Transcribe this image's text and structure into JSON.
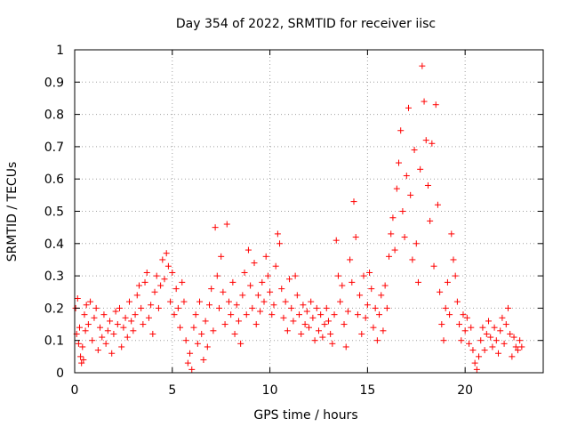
{
  "chart_data": {
    "type": "scatter",
    "title": "Day 354 of 2022, SRMTID for receiver iisc",
    "xlabel": "GPS time / hours",
    "ylabel": "SRMTID / TECUs",
    "xlim": [
      0,
      24
    ],
    "ylim": [
      0,
      1
    ],
    "xticks": [
      0,
      5,
      10,
      15,
      20
    ],
    "xtick_labels": [
      "0",
      "5",
      "10",
      "15",
      "20"
    ],
    "yticks": [
      0,
      0.1,
      0.2,
      0.3,
      0.4,
      0.5,
      0.6,
      0.7,
      0.8,
      0.9,
      1
    ],
    "ytick_labels": [
      "0",
      "0.1",
      "0.2",
      "0.3",
      "0.4",
      "0.5",
      "0.6",
      "0.7",
      "0.8",
      "0.9",
      "1"
    ],
    "grid": true,
    "marker": "plus",
    "color": "#ff0000",
    "series": [
      {
        "name": "SRMTID",
        "points": [
          [
            0.05,
            0.2
          ],
          [
            0.1,
            0.12
          ],
          [
            0.15,
            0.23
          ],
          [
            0.2,
            0.09
          ],
          [
            0.25,
            0.14
          ],
          [
            0.3,
            0.05
          ],
          [
            0.35,
            0.03
          ],
          [
            0.4,
            0.08
          ],
          [
            0.45,
            0.04
          ],
          [
            0.5,
            0.18
          ],
          [
            0.55,
            0.13
          ],
          [
            0.6,
            0.21
          ],
          [
            0.7,
            0.15
          ],
          [
            0.8,
            0.22
          ],
          [
            0.9,
            0.1
          ],
          [
            1.0,
            0.17
          ],
          [
            1.1,
            0.2
          ],
          [
            1.2,
            0.07
          ],
          [
            1.3,
            0.14
          ],
          [
            1.4,
            0.11
          ],
          [
            1.5,
            0.18
          ],
          [
            1.6,
            0.09
          ],
          [
            1.7,
            0.13
          ],
          [
            1.8,
            0.16
          ],
          [
            1.9,
            0.06
          ],
          [
            2.0,
            0.12
          ],
          [
            2.1,
            0.19
          ],
          [
            2.2,
            0.15
          ],
          [
            2.3,
            0.2
          ],
          [
            2.4,
            0.08
          ],
          [
            2.5,
            0.14
          ],
          [
            2.6,
            0.17
          ],
          [
            2.7,
            0.11
          ],
          [
            2.8,
            0.22
          ],
          [
            2.9,
            0.16
          ],
          [
            3.0,
            0.13
          ],
          [
            3.1,
            0.18
          ],
          [
            3.2,
            0.24
          ],
          [
            3.3,
            0.27
          ],
          [
            3.4,
            0.2
          ],
          [
            3.5,
            0.15
          ],
          [
            3.6,
            0.28
          ],
          [
            3.7,
            0.31
          ],
          [
            3.8,
            0.17
          ],
          [
            3.9,
            0.21
          ],
          [
            4.0,
            0.12
          ],
          [
            4.1,
            0.25
          ],
          [
            4.2,
            0.3
          ],
          [
            4.3,
            0.2
          ],
          [
            4.4,
            0.27
          ],
          [
            4.5,
            0.35
          ],
          [
            4.6,
            0.29
          ],
          [
            4.7,
            0.37
          ],
          [
            4.8,
            0.33
          ],
          [
            4.9,
            0.22
          ],
          [
            5.0,
            0.31
          ],
          [
            5.1,
            0.18
          ],
          [
            5.2,
            0.26
          ],
          [
            5.3,
            0.2
          ],
          [
            5.4,
            0.14
          ],
          [
            5.5,
            0.28
          ],
          [
            5.6,
            0.22
          ],
          [
            5.7,
            0.1
          ],
          [
            5.8,
            0.03
          ],
          [
            5.9,
            0.06
          ],
          [
            6.0,
            0.01
          ],
          [
            6.1,
            0.14
          ],
          [
            6.2,
            0.18
          ],
          [
            6.3,
            0.09
          ],
          [
            6.4,
            0.22
          ],
          [
            6.5,
            0.12
          ],
          [
            6.6,
            0.04
          ],
          [
            6.7,
            0.16
          ],
          [
            6.8,
            0.08
          ],
          [
            6.9,
            0.21
          ],
          [
            7.0,
            0.26
          ],
          [
            7.1,
            0.13
          ],
          [
            7.2,
            0.45
          ],
          [
            7.3,
            0.3
          ],
          [
            7.4,
            0.2
          ],
          [
            7.5,
            0.36
          ],
          [
            7.6,
            0.25
          ],
          [
            7.7,
            0.15
          ],
          [
            7.8,
            0.46
          ],
          [
            7.9,
            0.22
          ],
          [
            8.0,
            0.18
          ],
          [
            8.1,
            0.28
          ],
          [
            8.2,
            0.12
          ],
          [
            8.3,
            0.21
          ],
          [
            8.4,
            0.16
          ],
          [
            8.5,
            0.09
          ],
          [
            8.6,
            0.24
          ],
          [
            8.7,
            0.31
          ],
          [
            8.8,
            0.18
          ],
          [
            8.9,
            0.38
          ],
          [
            9.0,
            0.27
          ],
          [
            9.1,
            0.2
          ],
          [
            9.2,
            0.34
          ],
          [
            9.3,
            0.15
          ],
          [
            9.4,
            0.24
          ],
          [
            9.5,
            0.19
          ],
          [
            9.6,
            0.28
          ],
          [
            9.7,
            0.22
          ],
          [
            9.8,
            0.36
          ],
          [
            9.9,
            0.3
          ],
          [
            10.0,
            0.25
          ],
          [
            10.1,
            0.18
          ],
          [
            10.2,
            0.21
          ],
          [
            10.3,
            0.33
          ],
          [
            10.4,
            0.43
          ],
          [
            10.5,
            0.4
          ],
          [
            10.6,
            0.26
          ],
          [
            10.7,
            0.17
          ],
          [
            10.8,
            0.22
          ],
          [
            10.9,
            0.13
          ],
          [
            11.0,
            0.29
          ],
          [
            11.1,
            0.2
          ],
          [
            11.2,
            0.16
          ],
          [
            11.3,
            0.3
          ],
          [
            11.4,
            0.24
          ],
          [
            11.5,
            0.18
          ],
          [
            11.6,
            0.12
          ],
          [
            11.7,
            0.21
          ],
          [
            11.8,
            0.15
          ],
          [
            11.9,
            0.19
          ],
          [
            12.0,
            0.14
          ],
          [
            12.1,
            0.22
          ],
          [
            12.2,
            0.17
          ],
          [
            12.3,
            0.1
          ],
          [
            12.4,
            0.2
          ],
          [
            12.5,
            0.13
          ],
          [
            12.6,
            0.18
          ],
          [
            12.7,
            0.11
          ],
          [
            12.8,
            0.15
          ],
          [
            12.9,
            0.2
          ],
          [
            13.0,
            0.16
          ],
          [
            13.1,
            0.12
          ],
          [
            13.2,
            0.09
          ],
          [
            13.3,
            0.18
          ],
          [
            13.4,
            0.41
          ],
          [
            13.5,
            0.3
          ],
          [
            13.6,
            0.22
          ],
          [
            13.7,
            0.27
          ],
          [
            13.8,
            0.15
          ],
          [
            13.9,
            0.08
          ],
          [
            14.0,
            0.19
          ],
          [
            14.1,
            0.35
          ],
          [
            14.2,
            0.28
          ],
          [
            14.3,
            0.53
          ],
          [
            14.4,
            0.42
          ],
          [
            14.5,
            0.18
          ],
          [
            14.6,
            0.24
          ],
          [
            14.7,
            0.12
          ],
          [
            14.8,
            0.3
          ],
          [
            14.9,
            0.17
          ],
          [
            15.0,
            0.21
          ],
          [
            15.1,
            0.31
          ],
          [
            15.2,
            0.26
          ],
          [
            15.3,
            0.14
          ],
          [
            15.4,
            0.2
          ],
          [
            15.5,
            0.1
          ],
          [
            15.6,
            0.18
          ],
          [
            15.7,
            0.24
          ],
          [
            15.8,
            0.13
          ],
          [
            15.9,
            0.27
          ],
          [
            16.0,
            0.2
          ],
          [
            16.1,
            0.36
          ],
          [
            16.2,
            0.43
          ],
          [
            16.3,
            0.48
          ],
          [
            16.4,
            0.38
          ],
          [
            16.5,
            0.57
          ],
          [
            16.6,
            0.65
          ],
          [
            16.7,
            0.75
          ],
          [
            16.8,
            0.5
          ],
          [
            16.9,
            0.42
          ],
          [
            17.0,
            0.61
          ],
          [
            17.1,
            0.82
          ],
          [
            17.2,
            0.55
          ],
          [
            17.3,
            0.35
          ],
          [
            17.4,
            0.69
          ],
          [
            17.5,
            0.4
          ],
          [
            17.6,
            0.28
          ],
          [
            17.7,
            0.63
          ],
          [
            17.8,
            0.95
          ],
          [
            17.9,
            0.84
          ],
          [
            18.0,
            0.72
          ],
          [
            18.1,
            0.58
          ],
          [
            18.2,
            0.47
          ],
          [
            18.3,
            0.71
          ],
          [
            18.4,
            0.33
          ],
          [
            18.5,
            0.83
          ],
          [
            18.6,
            0.52
          ],
          [
            18.7,
            0.25
          ],
          [
            18.8,
            0.15
          ],
          [
            18.9,
            0.1
          ],
          [
            19.0,
            0.2
          ],
          [
            19.1,
            0.28
          ],
          [
            19.2,
            0.18
          ],
          [
            19.3,
            0.43
          ],
          [
            19.4,
            0.35
          ],
          [
            19.5,
            0.3
          ],
          [
            19.6,
            0.22
          ],
          [
            19.7,
            0.15
          ],
          [
            19.8,
            0.1
          ],
          [
            19.9,
            0.18
          ],
          [
            20.0,
            0.13
          ],
          [
            20.1,
            0.17
          ],
          [
            20.2,
            0.09
          ],
          [
            20.3,
            0.14
          ],
          [
            20.4,
            0.07
          ],
          [
            20.5,
            0.03
          ],
          [
            20.6,
            0.01
          ],
          [
            20.7,
            0.05
          ],
          [
            20.8,
            0.1
          ],
          [
            20.9,
            0.14
          ],
          [
            21.0,
            0.07
          ],
          [
            21.1,
            0.12
          ],
          [
            21.2,
            0.16
          ],
          [
            21.3,
            0.11
          ],
          [
            21.4,
            0.08
          ],
          [
            21.5,
            0.14
          ],
          [
            21.6,
            0.1
          ],
          [
            21.7,
            0.06
          ],
          [
            21.8,
            0.13
          ],
          [
            21.9,
            0.17
          ],
          [
            22.0,
            0.09
          ],
          [
            22.1,
            0.15
          ],
          [
            22.2,
            0.2
          ],
          [
            22.3,
            0.12
          ],
          [
            22.4,
            0.05
          ],
          [
            22.5,
            0.11
          ],
          [
            22.6,
            0.08
          ],
          [
            22.7,
            0.07
          ],
          [
            22.8,
            0.1
          ],
          [
            22.9,
            0.08
          ]
        ]
      }
    ]
  }
}
